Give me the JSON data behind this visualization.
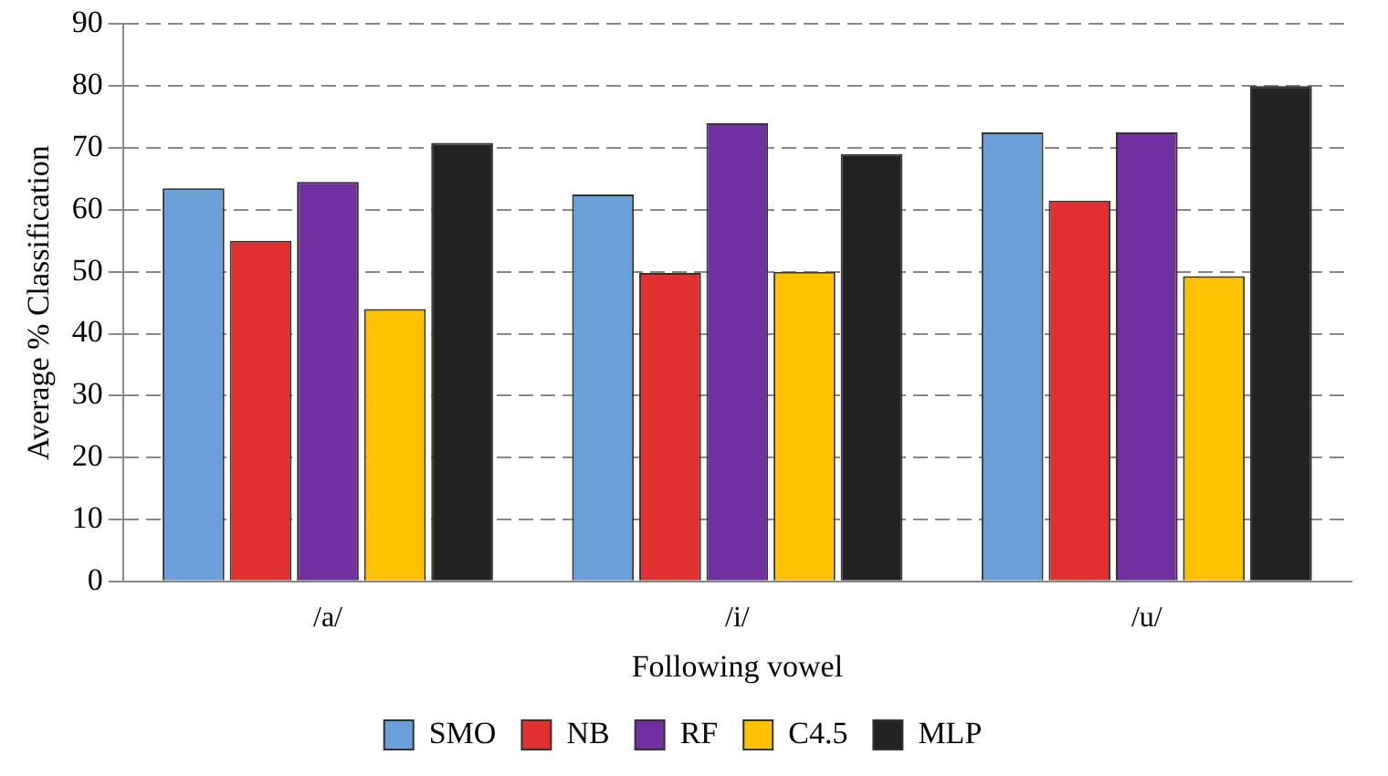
{
  "chart_data": {
    "type": "bar",
    "xlabel": "Following vowel",
    "ylabel": "Average % Classification",
    "categories": [
      "/a/",
      "/i/",
      "/u/"
    ],
    "series": [
      {
        "name": "SMO",
        "color": "#6a9fd8",
        "values": [
          63.5,
          62.5,
          72.5
        ]
      },
      {
        "name": "NB",
        "color": "#e03030",
        "values": [
          55,
          49.8,
          61.5
        ]
      },
      {
        "name": "RF",
        "color": "#7030a0",
        "values": [
          64.5,
          74,
          72.5
        ]
      },
      {
        "name": "C4.5",
        "color": "#ffc000",
        "values": [
          44,
          50,
          49.3
        ]
      },
      {
        "name": "MLP",
        "color": "#222222",
        "values": [
          70.8,
          69,
          80
        ]
      }
    ],
    "ylim": [
      0,
      90
    ],
    "yticks": [
      0,
      10,
      20,
      30,
      40,
      50,
      60,
      70,
      80,
      90
    ],
    "grid": "y",
    "legend": "bottom"
  }
}
